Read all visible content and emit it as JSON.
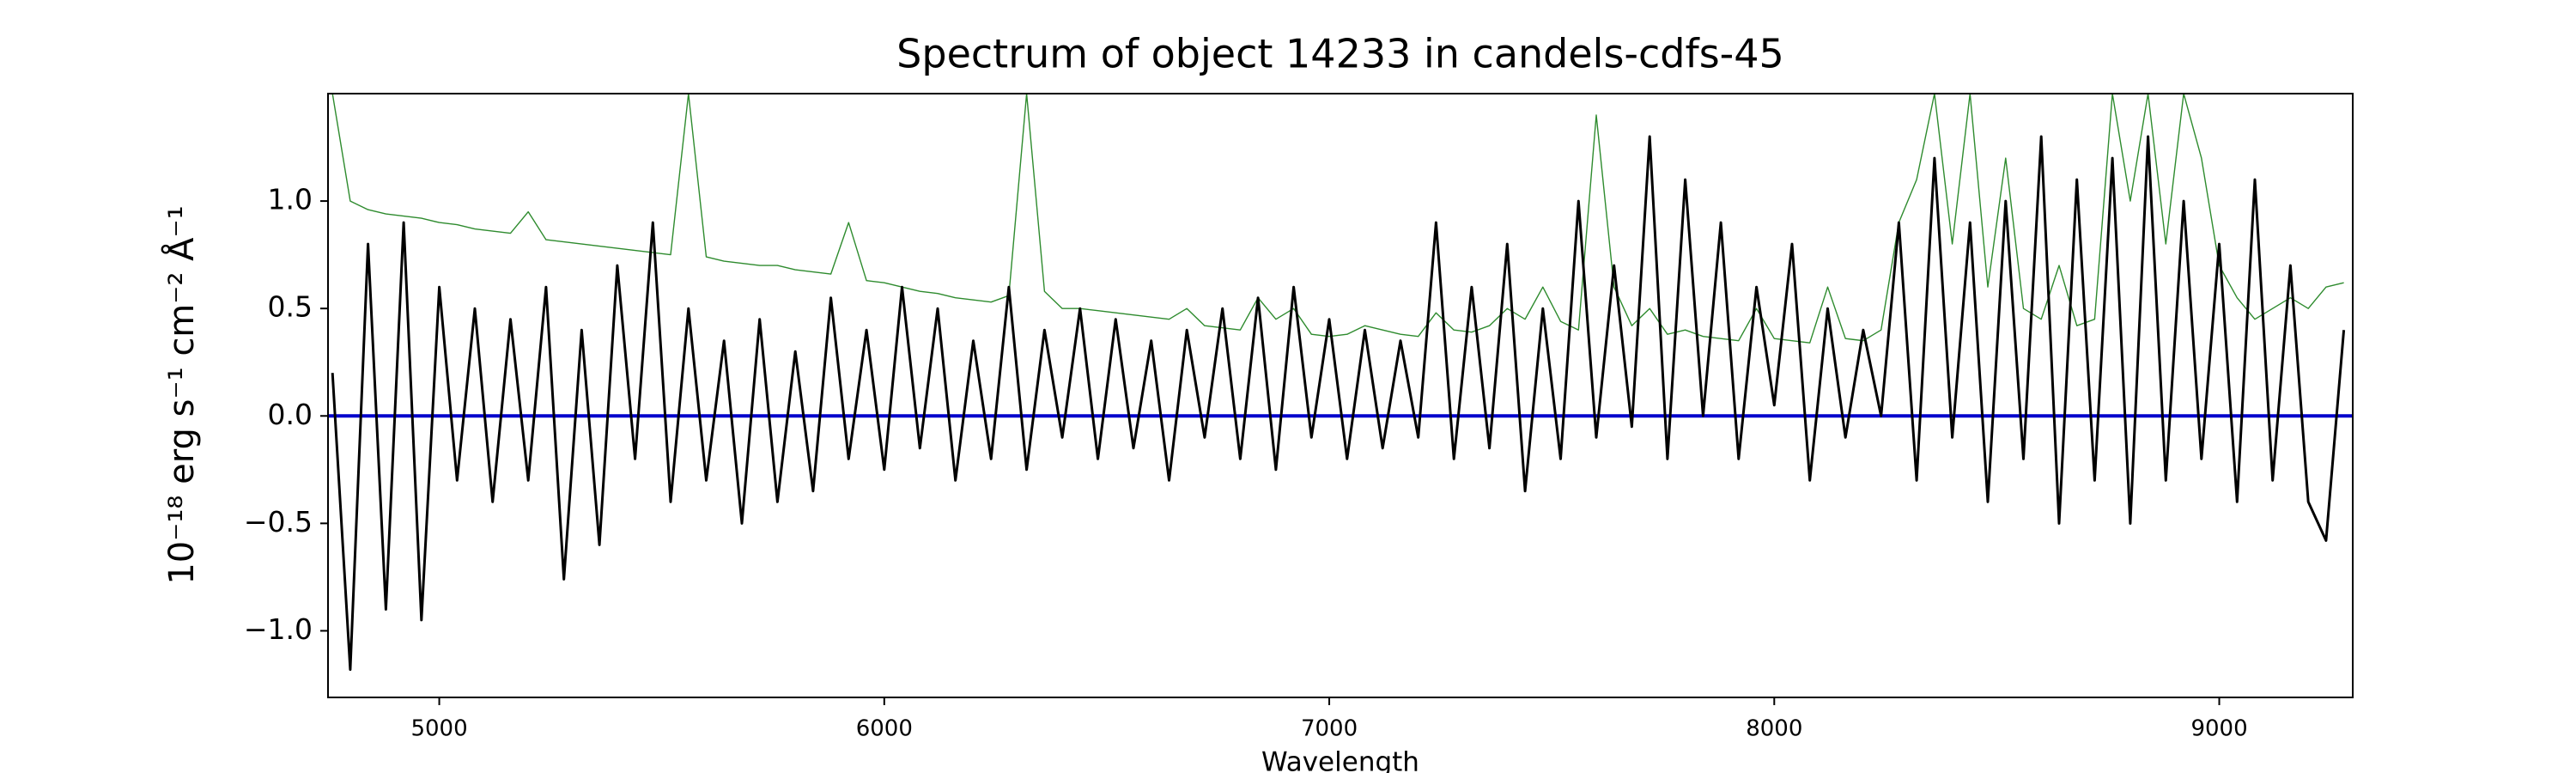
{
  "chart_data": {
    "type": "line",
    "title": "Spectrum of object 14233 in candels-cdfs-45",
    "xlabel": "Wavelength",
    "ylabel": "10⁻¹⁸ erg s⁻¹ cm⁻² Å⁻¹",
    "x": [
      4760,
      4800,
      4840,
      4880,
      4920,
      4960,
      5000,
      5040,
      5080,
      5120,
      5160,
      5200,
      5240,
      5280,
      5320,
      5360,
      5400,
      5440,
      5480,
      5520,
      5560,
      5600,
      5640,
      5680,
      5720,
      5760,
      5800,
      5840,
      5880,
      5920,
      5960,
      6000,
      6040,
      6080,
      6120,
      6160,
      6200,
      6240,
      6280,
      6320,
      6360,
      6400,
      6440,
      6480,
      6520,
      6560,
      6600,
      6640,
      6680,
      6720,
      6760,
      6800,
      6840,
      6880,
      6920,
      6960,
      7000,
      7040,
      7080,
      7120,
      7160,
      7200,
      7240,
      7280,
      7320,
      7360,
      7400,
      7440,
      7480,
      7520,
      7560,
      7600,
      7640,
      7680,
      7720,
      7760,
      7800,
      7840,
      7880,
      7920,
      7960,
      8000,
      8040,
      8080,
      8120,
      8160,
      8200,
      8240,
      8280,
      8320,
      8360,
      8400,
      8440,
      8480,
      8520,
      8560,
      8600,
      8640,
      8680,
      8720,
      8760,
      8800,
      8840,
      8880,
      8920,
      8960,
      9000,
      9040,
      9080,
      9120,
      9160,
      9200,
      9240,
      9280
    ],
    "series": [
      {
        "color": "#2e8b2e",
        "width": 1.4,
        "values": [
          1.5,
          1.0,
          0.96,
          0.94,
          0.93,
          0.92,
          0.9,
          0.89,
          0.87,
          0.86,
          0.85,
          0.95,
          0.82,
          0.81,
          0.8,
          0.79,
          0.78,
          0.77,
          0.76,
          0.75,
          1.5,
          0.74,
          0.72,
          0.71,
          0.7,
          0.7,
          0.68,
          0.67,
          0.66,
          0.9,
          0.63,
          0.62,
          0.6,
          0.58,
          0.57,
          0.55,
          0.54,
          0.53,
          0.56,
          1.5,
          0.58,
          0.5,
          0.5,
          0.49,
          0.48,
          0.47,
          0.46,
          0.45,
          0.5,
          0.42,
          0.41,
          0.4,
          0.55,
          0.45,
          0.5,
          0.38,
          0.37,
          0.38,
          0.42,
          0.4,
          0.38,
          0.37,
          0.48,
          0.4,
          0.39,
          0.42,
          0.5,
          0.45,
          0.6,
          0.44,
          0.4,
          1.4,
          0.6,
          0.42,
          0.5,
          0.38,
          0.4,
          0.37,
          0.36,
          0.35,
          0.5,
          0.36,
          0.35,
          0.34,
          0.6,
          0.36,
          0.35,
          0.4,
          0.9,
          1.1,
          1.5,
          0.8,
          1.5,
          0.6,
          1.2,
          0.5,
          0.45,
          0.7,
          0.42,
          0.45,
          1.5,
          1.0,
          1.5,
          0.8,
          1.5,
          1.2,
          0.7,
          0.55,
          0.45,
          0.5,
          0.55,
          0.5,
          0.6,
          0.62
        ]
      },
      {
        "color": "#000000",
        "width": 3,
        "values": [
          0.2,
          -1.18,
          0.8,
          -0.9,
          0.9,
          -0.95,
          0.6,
          -0.3,
          0.5,
          -0.4,
          0.45,
          -0.3,
          0.6,
          -0.76,
          0.4,
          -0.6,
          0.7,
          -0.2,
          0.9,
          -0.4,
          0.5,
          -0.3,
          0.35,
          -0.5,
          0.45,
          -0.4,
          0.3,
          -0.35,
          0.55,
          -0.2,
          0.4,
          -0.25,
          0.6,
          -0.15,
          0.5,
          -0.3,
          0.35,
          -0.2,
          0.6,
          -0.25,
          0.4,
          -0.1,
          0.5,
          -0.2,
          0.45,
          -0.15,
          0.35,
          -0.3,
          0.4,
          -0.1,
          0.5,
          -0.2,
          0.55,
          -0.25,
          0.6,
          -0.1,
          0.45,
          -0.2,
          0.4,
          -0.15,
          0.35,
          -0.1,
          0.9,
          -0.2,
          0.6,
          -0.15,
          0.8,
          -0.35,
          0.5,
          -0.2,
          1.0,
          -0.1,
          0.7,
          -0.05,
          1.3,
          -0.2,
          1.1,
          0.0,
          0.9,
          -0.2,
          0.6,
          0.05,
          0.8,
          -0.3,
          0.5,
          -0.1,
          0.4,
          0.0,
          0.9,
          -0.3,
          1.2,
          -0.1,
          0.9,
          -0.4,
          1.0,
          -0.2,
          1.3,
          -0.5,
          1.1,
          -0.3,
          1.2,
          -0.5,
          1.3,
          -0.3,
          1.0,
          -0.2,
          0.8,
          -0.4,
          1.1,
          -0.3,
          0.7,
          -0.4,
          -0.58,
          0.4
        ]
      }
    ],
    "hlines": [
      {
        "y": 0,
        "color": "#0000cc"
      }
    ],
    "xlim": [
      4750,
      9300
    ],
    "ylim": [
      -1.31,
      1.5
    ],
    "xticks": [
      5000,
      6000,
      7000,
      8000,
      9000
    ],
    "yticks": [
      {
        "value": -1,
        "label": "−1.0"
      },
      {
        "value": -0.5,
        "label": "−0.5"
      },
      {
        "value": 0,
        "label": "0.0"
      },
      0.5,
      {
        "value": 1,
        "label": "1.0"
      }
    ]
  }
}
